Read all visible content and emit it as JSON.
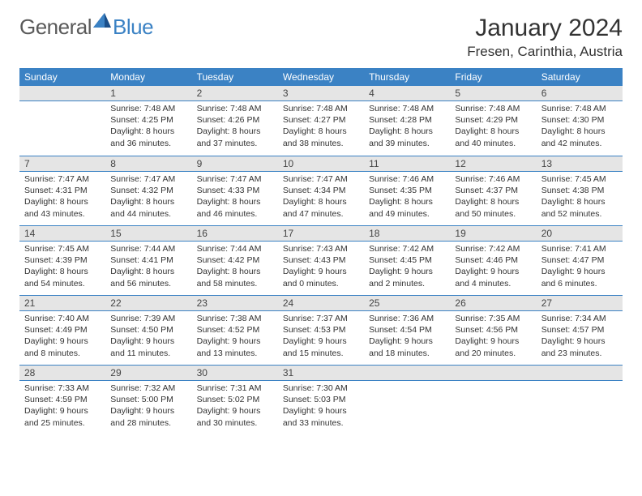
{
  "logo": {
    "text1": "General",
    "text2": "Blue"
  },
  "title": "January 2024",
  "subtitle": "Fresen, Carinthia, Austria",
  "colors": {
    "header_bg": "#3b82c4",
    "header_text": "#ffffff",
    "daynum_bg": "#e5e5e5",
    "daynum_border": "#3b82c4",
    "body_bg": "#ffffff",
    "text": "#333333",
    "logo_gray": "#5a5a5a",
    "logo_blue": "#3b82c4"
  },
  "day_headers": [
    "Sunday",
    "Monday",
    "Tuesday",
    "Wednesday",
    "Thursday",
    "Friday",
    "Saturday"
  ],
  "weeks": [
    [
      {
        "n": "",
        "sr": "",
        "ss": "",
        "dl": ""
      },
      {
        "n": "1",
        "sr": "Sunrise: 7:48 AM",
        "ss": "Sunset: 4:25 PM",
        "dl": "Daylight: 8 hours and 36 minutes."
      },
      {
        "n": "2",
        "sr": "Sunrise: 7:48 AM",
        "ss": "Sunset: 4:26 PM",
        "dl": "Daylight: 8 hours and 37 minutes."
      },
      {
        "n": "3",
        "sr": "Sunrise: 7:48 AM",
        "ss": "Sunset: 4:27 PM",
        "dl": "Daylight: 8 hours and 38 minutes."
      },
      {
        "n": "4",
        "sr": "Sunrise: 7:48 AM",
        "ss": "Sunset: 4:28 PM",
        "dl": "Daylight: 8 hours and 39 minutes."
      },
      {
        "n": "5",
        "sr": "Sunrise: 7:48 AM",
        "ss": "Sunset: 4:29 PM",
        "dl": "Daylight: 8 hours and 40 minutes."
      },
      {
        "n": "6",
        "sr": "Sunrise: 7:48 AM",
        "ss": "Sunset: 4:30 PM",
        "dl": "Daylight: 8 hours and 42 minutes."
      }
    ],
    [
      {
        "n": "7",
        "sr": "Sunrise: 7:47 AM",
        "ss": "Sunset: 4:31 PM",
        "dl": "Daylight: 8 hours and 43 minutes."
      },
      {
        "n": "8",
        "sr": "Sunrise: 7:47 AM",
        "ss": "Sunset: 4:32 PM",
        "dl": "Daylight: 8 hours and 44 minutes."
      },
      {
        "n": "9",
        "sr": "Sunrise: 7:47 AM",
        "ss": "Sunset: 4:33 PM",
        "dl": "Daylight: 8 hours and 46 minutes."
      },
      {
        "n": "10",
        "sr": "Sunrise: 7:47 AM",
        "ss": "Sunset: 4:34 PM",
        "dl": "Daylight: 8 hours and 47 minutes."
      },
      {
        "n": "11",
        "sr": "Sunrise: 7:46 AM",
        "ss": "Sunset: 4:35 PM",
        "dl": "Daylight: 8 hours and 49 minutes."
      },
      {
        "n": "12",
        "sr": "Sunrise: 7:46 AM",
        "ss": "Sunset: 4:37 PM",
        "dl": "Daylight: 8 hours and 50 minutes."
      },
      {
        "n": "13",
        "sr": "Sunrise: 7:45 AM",
        "ss": "Sunset: 4:38 PM",
        "dl": "Daylight: 8 hours and 52 minutes."
      }
    ],
    [
      {
        "n": "14",
        "sr": "Sunrise: 7:45 AM",
        "ss": "Sunset: 4:39 PM",
        "dl": "Daylight: 8 hours and 54 minutes."
      },
      {
        "n": "15",
        "sr": "Sunrise: 7:44 AM",
        "ss": "Sunset: 4:41 PM",
        "dl": "Daylight: 8 hours and 56 minutes."
      },
      {
        "n": "16",
        "sr": "Sunrise: 7:44 AM",
        "ss": "Sunset: 4:42 PM",
        "dl": "Daylight: 8 hours and 58 minutes."
      },
      {
        "n": "17",
        "sr": "Sunrise: 7:43 AM",
        "ss": "Sunset: 4:43 PM",
        "dl": "Daylight: 9 hours and 0 minutes."
      },
      {
        "n": "18",
        "sr": "Sunrise: 7:42 AM",
        "ss": "Sunset: 4:45 PM",
        "dl": "Daylight: 9 hours and 2 minutes."
      },
      {
        "n": "19",
        "sr": "Sunrise: 7:42 AM",
        "ss": "Sunset: 4:46 PM",
        "dl": "Daylight: 9 hours and 4 minutes."
      },
      {
        "n": "20",
        "sr": "Sunrise: 7:41 AM",
        "ss": "Sunset: 4:47 PM",
        "dl": "Daylight: 9 hours and 6 minutes."
      }
    ],
    [
      {
        "n": "21",
        "sr": "Sunrise: 7:40 AM",
        "ss": "Sunset: 4:49 PM",
        "dl": "Daylight: 9 hours and 8 minutes."
      },
      {
        "n": "22",
        "sr": "Sunrise: 7:39 AM",
        "ss": "Sunset: 4:50 PM",
        "dl": "Daylight: 9 hours and 11 minutes."
      },
      {
        "n": "23",
        "sr": "Sunrise: 7:38 AM",
        "ss": "Sunset: 4:52 PM",
        "dl": "Daylight: 9 hours and 13 minutes."
      },
      {
        "n": "24",
        "sr": "Sunrise: 7:37 AM",
        "ss": "Sunset: 4:53 PM",
        "dl": "Daylight: 9 hours and 15 minutes."
      },
      {
        "n": "25",
        "sr": "Sunrise: 7:36 AM",
        "ss": "Sunset: 4:54 PM",
        "dl": "Daylight: 9 hours and 18 minutes."
      },
      {
        "n": "26",
        "sr": "Sunrise: 7:35 AM",
        "ss": "Sunset: 4:56 PM",
        "dl": "Daylight: 9 hours and 20 minutes."
      },
      {
        "n": "27",
        "sr": "Sunrise: 7:34 AM",
        "ss": "Sunset: 4:57 PM",
        "dl": "Daylight: 9 hours and 23 minutes."
      }
    ],
    [
      {
        "n": "28",
        "sr": "Sunrise: 7:33 AM",
        "ss": "Sunset: 4:59 PM",
        "dl": "Daylight: 9 hours and 25 minutes."
      },
      {
        "n": "29",
        "sr": "Sunrise: 7:32 AM",
        "ss": "Sunset: 5:00 PM",
        "dl": "Daylight: 9 hours and 28 minutes."
      },
      {
        "n": "30",
        "sr": "Sunrise: 7:31 AM",
        "ss": "Sunset: 5:02 PM",
        "dl": "Daylight: 9 hours and 30 minutes."
      },
      {
        "n": "31",
        "sr": "Sunrise: 7:30 AM",
        "ss": "Sunset: 5:03 PM",
        "dl": "Daylight: 9 hours and 33 minutes."
      },
      {
        "n": "",
        "sr": "",
        "ss": "",
        "dl": ""
      },
      {
        "n": "",
        "sr": "",
        "ss": "",
        "dl": ""
      },
      {
        "n": "",
        "sr": "",
        "ss": "",
        "dl": ""
      }
    ]
  ]
}
